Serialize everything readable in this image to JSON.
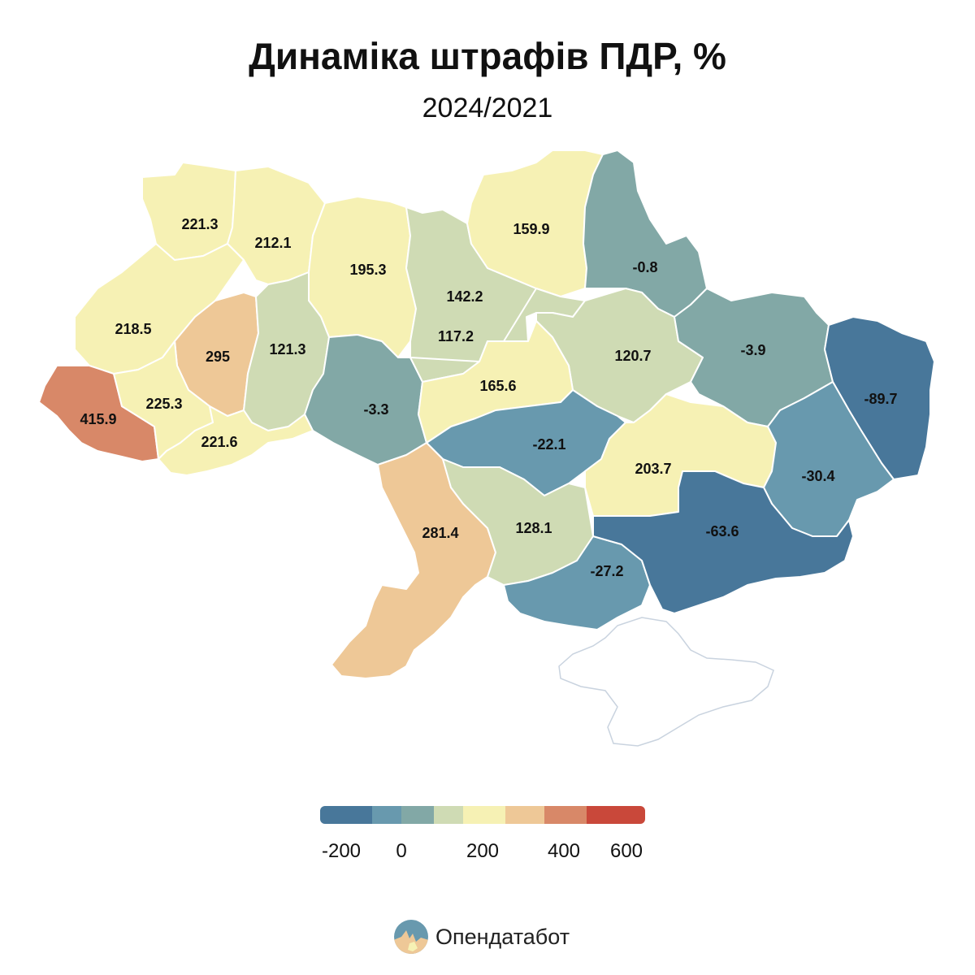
{
  "header": {
    "title": "Динаміка штрафів ПДР, %",
    "subtitle": "2024/2021"
  },
  "colors": {
    "very_low": "#48779a",
    "low": "#6899ae",
    "neutral_low": "#82a8a6",
    "neutral": "#cfdbb4",
    "mid": "#f6f1b4",
    "high": "#eec897",
    "very_high": "#d88868",
    "extreme": "#c9483a",
    "crimea_outline": "#c9d3df"
  },
  "chart_data": {
    "type": "choropleth",
    "regions": [
      {
        "name": "Volyn",
        "label": "221.3",
        "value": 221.3
      },
      {
        "name": "Rivne",
        "label": "212.1",
        "value": 212.1
      },
      {
        "name": "Zhytomyr",
        "label": "195.3",
        "value": 195.3
      },
      {
        "name": "Kyiv",
        "label": "142.2",
        "value": 142.2
      },
      {
        "name": "Chernihiv",
        "label": "159.9",
        "value": 159.9
      },
      {
        "name": "Sumy",
        "label": "-0.8",
        "value": -0.8
      },
      {
        "name": "Lviv",
        "label": "218.5",
        "value": 218.5
      },
      {
        "name": "Ternopil",
        "label": "295",
        "value": 295
      },
      {
        "name": "Khmelnytskyi",
        "label": "121.3",
        "value": 121.3
      },
      {
        "name": "Vinnytsia",
        "label": "-3.3",
        "value": -3.3
      },
      {
        "name": "Cherkasy",
        "label": "117.2",
        "value": 117.2
      },
      {
        "name": "Poltava",
        "label": "120.7",
        "value": 120.7
      },
      {
        "name": "Kharkiv",
        "label": "-3.9",
        "value": -3.9
      },
      {
        "name": "Luhansk",
        "label": "-89.7",
        "value": -89.7
      },
      {
        "name": "Zakarpattia",
        "label": "415.9",
        "value": 415.9
      },
      {
        "name": "Ivano-Frankivsk",
        "label": "225.3",
        "value": 225.3
      },
      {
        "name": "Chernivtsi",
        "label": "221.6",
        "value": 221.6
      },
      {
        "name": "Kirovohrad",
        "label": "165.6",
        "value": 165.6
      },
      {
        "name": "Dnipropetrovsk West",
        "label": "-22.1",
        "value": -22.1
      },
      {
        "name": "Dnipropetrovsk",
        "label": "203.7",
        "value": 203.7
      },
      {
        "name": "Donetsk",
        "label": "-30.4",
        "value": -30.4
      },
      {
        "name": "Odesa",
        "label": "281.4",
        "value": 281.4
      },
      {
        "name": "Mykolaiv",
        "label": "128.1",
        "value": 128.1
      },
      {
        "name": "Kherson",
        "label": "-27.2",
        "value": -27.2
      },
      {
        "name": "Zaporizhzhia",
        "label": "-63.6",
        "value": -63.6
      }
    ],
    "legend": {
      "ticks": [
        "-200",
        "0",
        "200",
        "400",
        "600"
      ],
      "range": [
        -200,
        600
      ]
    }
  },
  "brand": {
    "name": "Опендатабот",
    "icon": "opendatabot-logo-icon"
  }
}
